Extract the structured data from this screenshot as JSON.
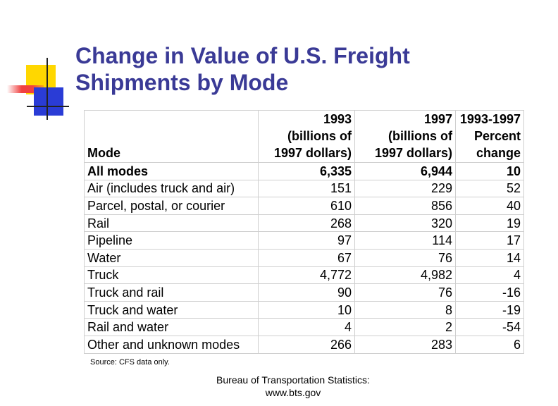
{
  "slide": {
    "title_line1": "Change in Value of U.S. Freight",
    "title_line2": "Shipments by Mode",
    "title_color": "#3a3a96"
  },
  "table": {
    "headers": {
      "mode": "Mode",
      "col1": [
        "1993",
        "(billions of",
        "1997 dollars)"
      ],
      "col2": [
        "1997",
        "(billions of",
        "1997 dollars)"
      ],
      "col3": [
        "1993-1997",
        "Percent",
        "change"
      ]
    },
    "rows": [
      {
        "mode": "All modes",
        "v1993": "6,335",
        "v1997": "6,944",
        "pct": "10"
      },
      {
        "mode": "Air (includes truck and air)",
        "v1993": "151",
        "v1997": "229",
        "pct": "52"
      },
      {
        "mode": "Parcel, postal, or courier",
        "v1993": "610",
        "v1997": "856",
        "pct": "40"
      },
      {
        "mode": "Rail",
        "v1993": "268",
        "v1997": "320",
        "pct": "19"
      },
      {
        "mode": "Pipeline",
        "v1993": "97",
        "v1997": "114",
        "pct": "17"
      },
      {
        "mode": "Water",
        "v1993": "67",
        "v1997": "76",
        "pct": "14"
      },
      {
        "mode": "Truck",
        "v1993": "4,772",
        "v1997": "4,982",
        "pct": "4"
      },
      {
        "mode": "Truck and rail",
        "v1993": "90",
        "v1997": "76",
        "pct": "-16"
      },
      {
        "mode": "Truck and water",
        "v1993": "10",
        "v1997": "8",
        "pct": "-19"
      },
      {
        "mode": "Rail and water",
        "v1993": "4",
        "v1997": "2",
        "pct": "-54"
      },
      {
        "mode": "Other and unknown modes",
        "v1993": "266",
        "v1997": "283",
        "pct": "6"
      }
    ]
  },
  "source_note": "Source: CFS data only.",
  "footer": {
    "line1": "Bureau of Transportation Statistics:",
    "line2": "www.bts.gov"
  }
}
